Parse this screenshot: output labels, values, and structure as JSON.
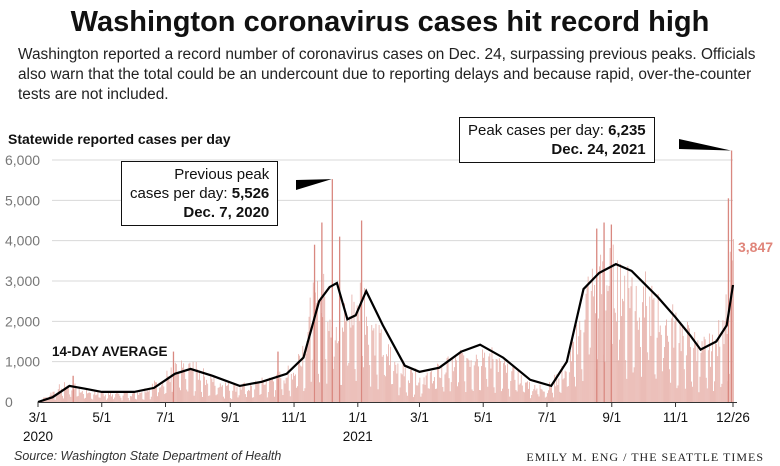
{
  "header": {
    "title": "Washington coronavirus cases hit record high",
    "subtitle": "Washington reported a record number of coronavirus cases on Dec. 24, surpassing previous peaks. Officials also warn that the total could be an undercount due to reporting delays and because rapid, over-the-counter tests are not included."
  },
  "footer": {
    "source": "Source: Washington State Department of Health",
    "credit": "EMILY M. ENG / THE SEATTLE TIMES"
  },
  "colors": {
    "bars": "#e5aaa2",
    "spikes": "#d98880",
    "average": "#000000",
    "label_3847": "#e0857a",
    "grid": "#d8d8d8"
  },
  "chart_data": {
    "type": "bar",
    "ylabel": "Statewide reported cases per day",
    "y_ticks": [
      "0",
      "1,000",
      "2,000",
      "3,000",
      "4,000",
      "5,000",
      "6,000"
    ],
    "ylim": [
      0,
      6000
    ],
    "x_ticks": [
      {
        "label": "3/1",
        "year": "2020",
        "date": "2020-03-01"
      },
      {
        "label": "5/1",
        "year": "",
        "date": "2020-05-01"
      },
      {
        "label": "7/1",
        "year": "",
        "date": "2020-07-01"
      },
      {
        "label": "9/1",
        "year": "",
        "date": "2020-09-01"
      },
      {
        "label": "11/1",
        "year": "",
        "date": "2020-11-01"
      },
      {
        "label": "1/1",
        "year": "2021",
        "date": "2021-01-01"
      },
      {
        "label": "3/1",
        "year": "",
        "date": "2021-03-01"
      },
      {
        "label": "5/1",
        "year": "",
        "date": "2021-05-01"
      },
      {
        "label": "7/1",
        "year": "",
        "date": "2021-07-01"
      },
      {
        "label": "9/1",
        "year": "",
        "date": "2021-09-01"
      },
      {
        "label": "11/1",
        "year": "",
        "date": "2021-11-01"
      },
      {
        "label": "12/26",
        "year": "",
        "date": "2021-12-26"
      }
    ],
    "xlim": [
      "2020-03-01",
      "2021-12-26"
    ],
    "series": [
      {
        "name": "Statewide reported cases per day",
        "type": "bar",
        "approximate_daily_envelope": [
          [
            "2020-03-01",
            0
          ],
          [
            "2020-03-20",
            400
          ],
          [
            "2020-04-01",
            500
          ],
          [
            "2020-04-15",
            300
          ],
          [
            "2020-05-01",
            250
          ],
          [
            "2020-06-01",
            250
          ],
          [
            "2020-06-20",
            500
          ],
          [
            "2020-07-10",
            900
          ],
          [
            "2020-07-25",
            1000
          ],
          [
            "2020-08-10",
            700
          ],
          [
            "2020-09-01",
            450
          ],
          [
            "2020-09-20",
            450
          ],
          [
            "2020-10-15",
            700
          ],
          [
            "2020-11-01",
            900
          ],
          [
            "2020-11-20",
            2800
          ],
          [
            "2020-12-01",
            3000
          ],
          [
            "2020-12-15",
            2300
          ],
          [
            "2021-01-05",
            3100
          ],
          [
            "2021-01-20",
            1800
          ],
          [
            "2021-02-15",
            900
          ],
          [
            "2021-03-01",
            700
          ],
          [
            "2021-03-20",
            900
          ],
          [
            "2021-04-10",
            1300
          ],
          [
            "2021-05-01",
            1500
          ],
          [
            "2021-05-20",
            1000
          ],
          [
            "2021-06-15",
            500
          ],
          [
            "2021-07-01",
            400
          ],
          [
            "2021-07-20",
            1000
          ],
          [
            "2021-08-10",
            3300
          ],
          [
            "2021-09-01",
            3600
          ],
          [
            "2021-09-15",
            3500
          ],
          [
            "2021-10-15",
            2600
          ],
          [
            "2021-11-01",
            2200
          ],
          [
            "2021-11-25",
            1500
          ],
          [
            "2021-12-10",
            1600
          ],
          [
            "2021-12-20",
            3000
          ],
          [
            "2021-12-26",
            3847
          ]
        ],
        "spikes": [
          [
            "2020-04-03",
            650
          ],
          [
            "2020-07-08",
            1250
          ],
          [
            "2020-10-16",
            1250
          ],
          [
            "2020-11-20",
            3900
          ],
          [
            "2020-11-27",
            4450
          ],
          [
            "2020-12-07",
            5526
          ],
          [
            "2020-12-14",
            4100
          ],
          [
            "2021-01-04",
            4500
          ],
          [
            "2021-08-17",
            4300
          ],
          [
            "2021-08-24",
            4450
          ],
          [
            "2021-08-31",
            4400
          ],
          [
            "2021-12-21",
            5050
          ],
          [
            "2021-12-24",
            6235
          ]
        ]
      },
      {
        "name": "14-day average",
        "type": "line",
        "points": [
          [
            "2020-03-01",
            0
          ],
          [
            "2020-03-15",
            120
          ],
          [
            "2020-03-31",
            400
          ],
          [
            "2020-04-15",
            330
          ],
          [
            "2020-05-01",
            250
          ],
          [
            "2020-06-01",
            250
          ],
          [
            "2020-06-20",
            350
          ],
          [
            "2020-07-10",
            700
          ],
          [
            "2020-07-25",
            820
          ],
          [
            "2020-08-15",
            650
          ],
          [
            "2020-09-10",
            400
          ],
          [
            "2020-10-01",
            500
          ],
          [
            "2020-10-25",
            700
          ],
          [
            "2020-11-10",
            1100
          ],
          [
            "2020-11-25",
            2500
          ],
          [
            "2020-12-05",
            2850
          ],
          [
            "2020-12-12",
            2950
          ],
          [
            "2020-12-22",
            2050
          ],
          [
            "2020-12-30",
            2150
          ],
          [
            "2021-01-09",
            2750
          ],
          [
            "2021-01-25",
            1900
          ],
          [
            "2021-02-15",
            900
          ],
          [
            "2021-03-01",
            750
          ],
          [
            "2021-03-20",
            850
          ],
          [
            "2021-04-10",
            1250
          ],
          [
            "2021-04-28",
            1420
          ],
          [
            "2021-05-20",
            1100
          ],
          [
            "2021-06-15",
            550
          ],
          [
            "2021-07-05",
            400
          ],
          [
            "2021-07-20",
            1000
          ],
          [
            "2021-08-05",
            2800
          ],
          [
            "2021-08-20",
            3200
          ],
          [
            "2021-09-05",
            3420
          ],
          [
            "2021-09-20",
            3250
          ],
          [
            "2021-10-15",
            2600
          ],
          [
            "2021-11-01",
            2100
          ],
          [
            "2021-11-15",
            1650
          ],
          [
            "2021-11-25",
            1300
          ],
          [
            "2021-12-10",
            1500
          ],
          [
            "2021-12-20",
            1900
          ],
          [
            "2021-12-26",
            2900
          ]
        ]
      }
    ],
    "annotations": {
      "avg_label": "14-DAY AVERAGE",
      "prev_peak_line1": "Previous peak",
      "prev_peak_line2": "cases per day:",
      "prev_peak_value": "5,526",
      "prev_peak_date": "Dec. 7, 2020",
      "peak_line1": "Peak cases per day:",
      "peak_value": "6,235",
      "peak_date": "Dec. 24, 2021",
      "latest_value": "3,847"
    }
  }
}
